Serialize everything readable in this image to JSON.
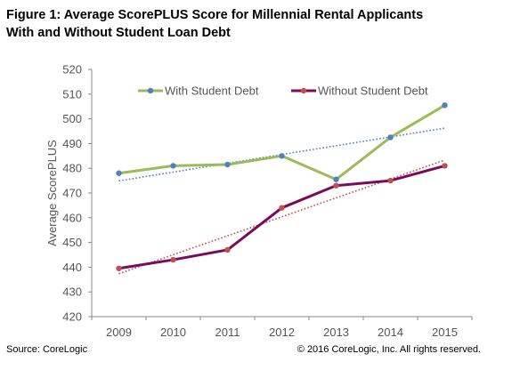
{
  "title_line1": "Figure 1: Average ScorePLUS Score for Millennial Rental Applicants",
  "title_line2": "With and Without Student Loan Debt",
  "source": "Source: CoreLogic",
  "copyright": "© 2016 CoreLogic, Inc. All rights reserved.",
  "chart_data": {
    "type": "line",
    "x": [
      "2009",
      "2010",
      "2011",
      "2012",
      "2013",
      "2014",
      "2015"
    ],
    "series": [
      {
        "name": "With Student Debt",
        "values": [
          478,
          481,
          481.5,
          485,
          475.5,
          492.5,
          505.5
        ],
        "color": "#9bbb59",
        "marker_color": "#4f81bd",
        "trend_color": "#4f81bd"
      },
      {
        "name": "Without Student Debt",
        "values": [
          439.5,
          443,
          447,
          464,
          473,
          475,
          481
        ],
        "color": "#7b0a5d",
        "marker_color": "#c0504d",
        "trend_color": "#c0504d"
      }
    ],
    "trendline": "linear, dotted",
    "xlabel": "",
    "ylabel": "Average ScorePLUS",
    "ylim": [
      420,
      520
    ],
    "yticks": [
      420,
      430,
      440,
      450,
      460,
      470,
      480,
      490,
      500,
      510,
      520
    ],
    "grid": false,
    "legend": "top, inside plot"
  }
}
